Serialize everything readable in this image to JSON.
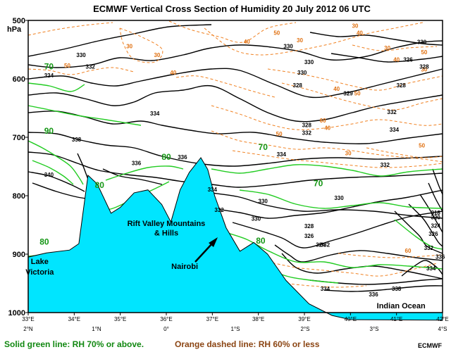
{
  "chart_data": {
    "type": "contour",
    "title": "ECMWF Vertical Cross Section of Humidity  20 July 2012 06 UTC",
    "ylabel_unit": "hPa",
    "y_axis": {
      "range": [
        1000,
        500
      ],
      "ticks": [
        "500",
        "600",
        "700",
        "800",
        "900",
        "1000"
      ]
    },
    "x_axis_longitude": {
      "range": [
        33,
        42
      ],
      "ticks": [
        "33°E",
        "34°E",
        "35°E",
        "36°E",
        "37°E",
        "38°E",
        "39°E",
        "40°E",
        "41°E",
        "42°E"
      ]
    },
    "x_axis_latitude": {
      "ticks": [
        "2°N",
        "1°N",
        "0°",
        "1°S",
        "2°S",
        "3°S",
        "4°S"
      ]
    },
    "terrain": {
      "color": "#00e5ff",
      "profile": [
        [
          33.0,
          905
        ],
        [
          33.4,
          898
        ],
        [
          33.9,
          893
        ],
        [
          34.1,
          882
        ],
        [
          34.3,
          765
        ],
        [
          34.5,
          780
        ],
        [
          34.8,
          830
        ],
        [
          35.0,
          820
        ],
        [
          35.3,
          795
        ],
        [
          35.6,
          790
        ],
        [
          35.9,
          815
        ],
        [
          36.1,
          845
        ],
        [
          36.3,
          790
        ],
        [
          36.5,
          760
        ],
        [
          36.75,
          735
        ],
        [
          36.9,
          755
        ],
        [
          37.05,
          800
        ],
        [
          37.3,
          855
        ],
        [
          37.6,
          895
        ],
        [
          37.9,
          880
        ],
        [
          38.2,
          900
        ],
        [
          38.6,
          945
        ],
        [
          39.1,
          985
        ],
        [
          39.6,
          1005
        ],
        [
          40.0,
          1012
        ],
        [
          42.0,
          1013
        ]
      ]
    },
    "series": [
      {
        "name": "RH (%) solid green",
        "style": "solid",
        "color": "#22cc22",
        "levels": [
          "70",
          "80",
          "90"
        ],
        "labels": [
          {
            "text": "70",
            "x": 33.45,
            "p": 580
          },
          {
            "text": "90",
            "x": 33.45,
            "p": 690
          },
          {
            "text": "80",
            "x": 34.55,
            "p": 783
          },
          {
            "text": "80",
            "x": 36.0,
            "p": 735
          },
          {
            "text": "70",
            "x": 38.1,
            "p": 718
          },
          {
            "text": "70",
            "x": 39.3,
            "p": 780
          },
          {
            "text": "80",
            "x": 33.35,
            "p": 880
          },
          {
            "text": "80",
            "x": 38.05,
            "p": 878
          }
        ]
      },
      {
        "name": "RH (%) orange dashed",
        "style": "dashed",
        "color": "#f08020",
        "levels": [
          "30",
          "40",
          "50",
          "60"
        ],
        "labels": [
          {
            "text": "30",
            "x": 35.2,
            "p": 545
          },
          {
            "text": "30",
            "x": 35.8,
            "p": 560
          },
          {
            "text": "40",
            "x": 37.75,
            "p": 537
          },
          {
            "text": "50",
            "x": 38.4,
            "p": 522
          },
          {
            "text": "30",
            "x": 38.9,
            "p": 535
          },
          {
            "text": "30",
            "x": 40.1,
            "p": 510
          },
          {
            "text": "40",
            "x": 40.2,
            "p": 522
          },
          {
            "text": "30",
            "x": 40.8,
            "p": 548
          },
          {
            "text": "40",
            "x": 41.0,
            "p": 568
          },
          {
            "text": "50",
            "x": 41.6,
            "p": 555
          },
          {
            "text": "30",
            "x": 41.6,
            "p": 585
          },
          {
            "text": "40",
            "x": 36.15,
            "p": 590
          },
          {
            "text": "50",
            "x": 33.85,
            "p": 578
          },
          {
            "text": "40",
            "x": 39.7,
            "p": 618
          },
          {
            "text": "50",
            "x": 40.15,
            "p": 626
          },
          {
            "text": "60",
            "x": 39.4,
            "p": 672
          },
          {
            "text": "40",
            "x": 39.5,
            "p": 685
          },
          {
            "text": "30",
            "x": 39.95,
            "p": 728
          },
          {
            "text": "50",
            "x": 41.55,
            "p": 715
          },
          {
            "text": "50",
            "x": 38.45,
            "p": 695
          },
          {
            "text": "60",
            "x": 41.25,
            "p": 895
          }
        ]
      },
      {
        "name": "Equivalent potential temperature (K) solid black",
        "style": "solid",
        "color": "#000000",
        "levels": [
          "318",
          "320",
          "324",
          "326",
          "328",
          "329",
          "330",
          "332",
          "334",
          "336",
          "338",
          "340"
        ],
        "labels": [
          {
            "text": "330",
            "x": 38.65,
            "p": 545
          },
          {
            "text": "330",
            "x": 39.1,
            "p": 572
          },
          {
            "text": "330",
            "x": 38.95,
            "p": 590
          },
          {
            "text": "328",
            "x": 38.85,
            "p": 612
          },
          {
            "text": "329",
            "x": 39.95,
            "p": 626
          },
          {
            "text": "328",
            "x": 39.05,
            "p": 680
          },
          {
            "text": "328",
            "x": 41.1,
            "p": 612
          },
          {
            "text": "334",
            "x": 33.45,
            "p": 595
          },
          {
            "text": "332",
            "x": 34.35,
            "p": 580
          },
          {
            "text": "330",
            "x": 34.15,
            "p": 560
          },
          {
            "text": "334",
            "x": 35.75,
            "p": 660
          },
          {
            "text": "338",
            "x": 34.05,
            "p": 705
          },
          {
            "text": "336",
            "x": 35.35,
            "p": 745
          },
          {
            "text": "336",
            "x": 36.35,
            "p": 735
          },
          {
            "text": "340",
            "x": 33.45,
            "p": 765
          },
          {
            "text": "334",
            "x": 37.0,
            "p": 790
          },
          {
            "text": "332",
            "x": 37.15,
            "p": 825
          },
          {
            "text": "330",
            "x": 38.1,
            "p": 810
          },
          {
            "text": "330",
            "x": 39.75,
            "p": 805
          },
          {
            "text": "328",
            "x": 39.1,
            "p": 853
          },
          {
            "text": "326",
            "x": 39.1,
            "p": 870
          },
          {
            "text": "324",
            "x": 39.35,
            "p": 885
          },
          {
            "text": "330",
            "x": 37.95,
            "p": 840
          },
          {
            "text": "332",
            "x": 39.05,
            "p": 693
          },
          {
            "text": "334",
            "x": 38.5,
            "p": 730
          },
          {
            "text": "332",
            "x": 40.9,
            "p": 658
          },
          {
            "text": "334",
            "x": 40.95,
            "p": 688
          },
          {
            "text": "332",
            "x": 40.75,
            "p": 748
          },
          {
            "text": "330",
            "x": 41.55,
            "p": 538
          },
          {
            "text": "326",
            "x": 41.25,
            "p": 568
          },
          {
            "text": "328",
            "x": 41.6,
            "p": 580
          },
          {
            "text": "332",
            "x": 39.45,
            "p": 885
          },
          {
            "text": "334",
            "x": 39.45,
            "p": 960
          },
          {
            "text": "336",
            "x": 40.5,
            "p": 970
          },
          {
            "text": "338",
            "x": 41.0,
            "p": 960
          },
          {
            "text": "332",
            "x": 41.7,
            "p": 890
          },
          {
            "text": "334",
            "x": 41.75,
            "p": 925
          },
          {
            "text": "336",
            "x": 41.95,
            "p": 905
          },
          {
            "text": "318",
            "x": 41.85,
            "p": 830
          },
          {
            "text": "320",
            "x": 41.85,
            "p": 838
          },
          {
            "text": "324",
            "x": 41.85,
            "p": 852
          },
          {
            "text": "326",
            "x": 41.8,
            "p": 866
          }
        ]
      }
    ],
    "annotations": [
      {
        "text": "Rift Valley Mountains",
        "x": 36.0,
        "p": 852
      },
      {
        "text": "& Hills",
        "x": 36.0,
        "p": 868
      },
      {
        "text": "Nairobi",
        "x": 36.4,
        "p": 925
      },
      {
        "text": "Lake",
        "x": 33.25,
        "p": 917
      },
      {
        "text": "Victoria",
        "x": 33.25,
        "p": 935
      },
      {
        "text": "Indian Ocean",
        "x": 41.1,
        "p": 993
      }
    ]
  },
  "footer": {
    "green_note": "Solid green line: RH 70% or above.",
    "orange_note": "Orange dashed line: RH 60% or less",
    "credit": "ECMWF",
    "green_color": "#118811",
    "orange_color": "#8b4513"
  }
}
